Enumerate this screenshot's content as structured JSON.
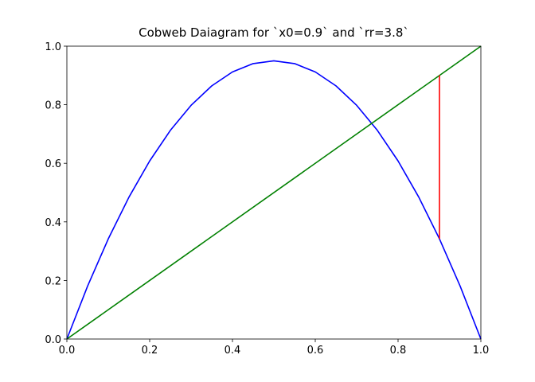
{
  "chart_data": {
    "type": "line",
    "title": "Cobweb Daiagram for `x0=0.9` and `rr=3.8`",
    "xlim": [
      0,
      1
    ],
    "ylim": [
      0,
      1
    ],
    "xticks": [
      {
        "value": 0,
        "label": "0.0"
      },
      0.2,
      0.4,
      0.6,
      0.8,
      {
        "value": 1,
        "label": "1.0"
      }
    ],
    "yticks": [
      {
        "value": 0,
        "label": "0.0"
      },
      0.2,
      0.4,
      0.6,
      0.8,
      {
        "value": 1,
        "label": "1.0"
      }
    ],
    "grid": false,
    "series": [
      {
        "color": "#0000ff",
        "x": [
          0,
          0.05,
          0.1,
          0.15,
          0.2,
          0.25,
          0.3,
          0.35,
          0.4,
          0.45,
          0.5,
          0.55,
          0.6,
          0.65,
          0.7,
          0.75,
          0.8,
          0.85,
          0.9,
          0.95,
          1
        ],
        "values": [
          0,
          0.1805,
          0.342,
          0.4845,
          0.608,
          0.7125,
          0.798,
          0.8645,
          0.912,
          0.9405,
          0.95,
          0.9405,
          0.912,
          0.8645,
          0.798,
          0.7125,
          0.608,
          0.4845,
          0.342,
          0.1805,
          0
        ]
      },
      {
        "color": "#008000",
        "x": [
          0,
          1
        ],
        "values": [
          0,
          1
        ]
      },
      {
        "color": "#ff0000",
        "x": [
          0.9,
          0.9
        ],
        "values": [
          0.9,
          0.342
        ]
      }
    ]
  }
}
